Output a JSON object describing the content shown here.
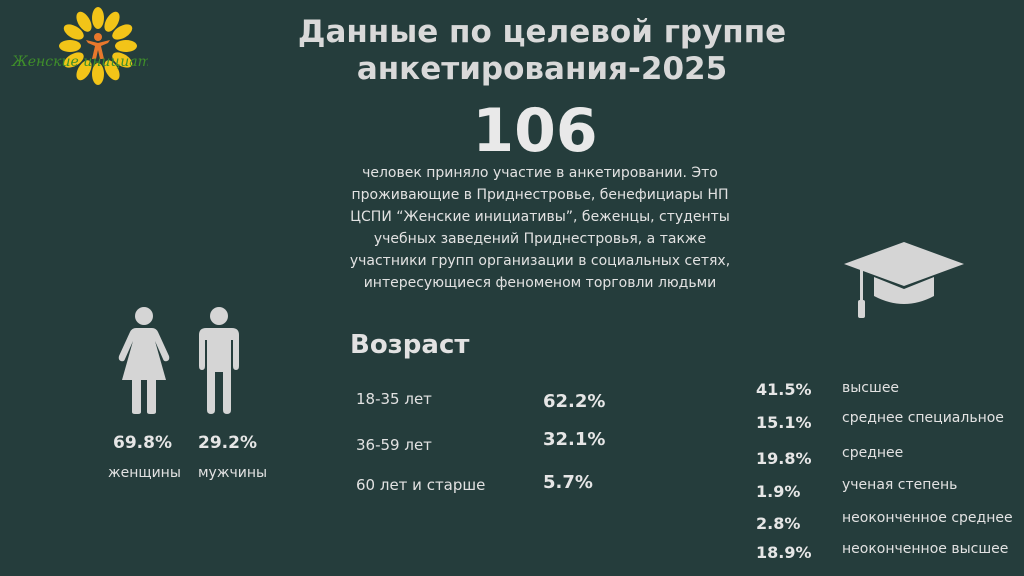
{
  "logo": {
    "text": "Женские инициативы",
    "icon": "sunflower-logo"
  },
  "title": {
    "line1": "Данные по целевой группе",
    "line2": "анкетирования-2025"
  },
  "participants": {
    "count": "106",
    "description": "человек приняло участие в анкетировании. Это проживающие в Приднестровье, бенефициары НП ЦСПИ “Женские инициативы”, беженцы, студенты учебных заведений Приднестровья, а также участники групп организации в социальных сетях, интересующиеся феноменом торговли людьми"
  },
  "gender": {
    "women": {
      "percent": "69.8%",
      "label": "женщины",
      "icon": "woman-icon"
    },
    "men": {
      "percent": "29.2%",
      "label": "мужчины",
      "icon": "man-icon"
    }
  },
  "age": {
    "title": "Возраст",
    "items": [
      {
        "label": "18-35 лет",
        "percent": "62.2%"
      },
      {
        "label": "36-59 лет",
        "percent": "32.1%"
      },
      {
        "label": "60 лет и старше",
        "percent": "5.7%"
      }
    ]
  },
  "education": {
    "icon": "graduation-cap-icon",
    "items": [
      {
        "percent": "41.5%",
        "label": "высшее"
      },
      {
        "percent": "15.1%",
        "label": "среднее специальное"
      },
      {
        "percent": "19.8%",
        "label": "среднее"
      },
      {
        "percent": "1.9%",
        "label": "ученая степень"
      },
      {
        "percent": "2.8%",
        "label": "неоконченное среднее"
      },
      {
        "percent": "18.9%",
        "label": "неоконченное высшее"
      }
    ]
  },
  "colors": {
    "background": "#253d3c",
    "text": "#e6e6e6",
    "icon": "#d5d5d5",
    "logo_petal": "#f2c418",
    "logo_figure": "#e8782c"
  }
}
